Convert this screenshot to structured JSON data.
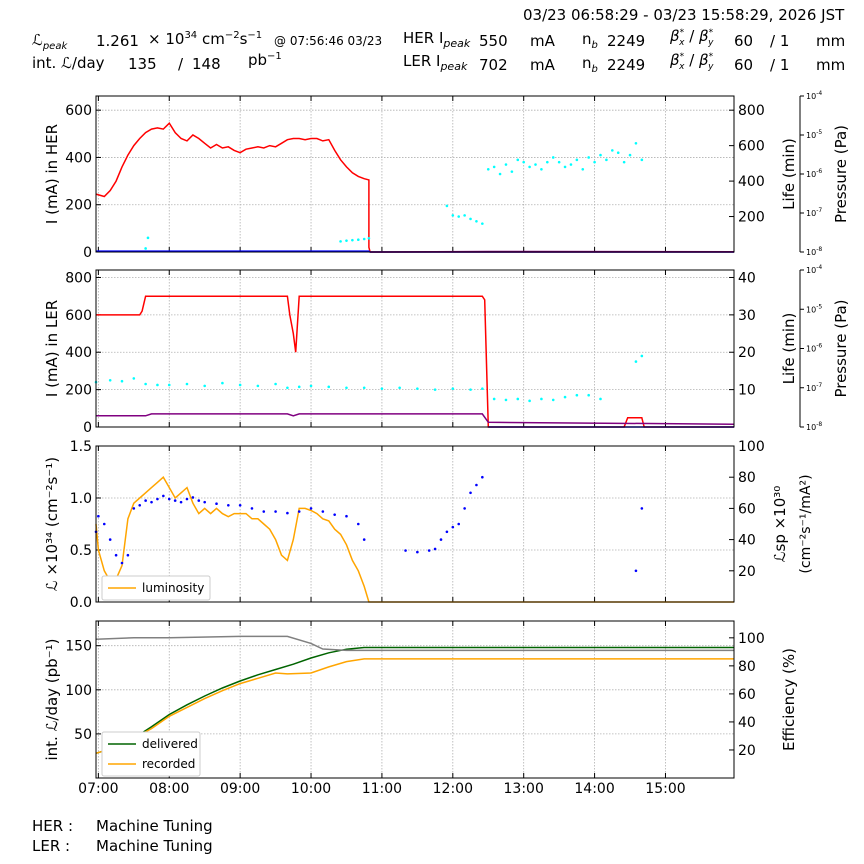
{
  "header": {
    "timerange": "03/23 06:58:29 - 03/23 15:58:29, 2026 JST",
    "lpeak_label": "ℒ",
    "lpeak_sub": "peak",
    "lpeak_value": "1.261",
    "lpeak_times": "× 10",
    "lpeak_exp": "34",
    "lpeak_unit": "cm",
    "lpeak_unit_exp1": "−2",
    "lpeak_unit_s": "s",
    "lpeak_unit_exp2": "−1",
    "lpeak_at": "@ 07:56:46 03/23",
    "intl_label": "int. ℒ/day",
    "intl_value": "135",
    "intl_slash": "/",
    "intl_total": "148",
    "intl_unit": "pb",
    "intl_unit_exp": "−1",
    "her_label": "HER I",
    "her_sub": "peak",
    "her_current": "550",
    "her_unit": "mA",
    "her_nb_label": "n",
    "her_nb_sub": "b",
    "her_nb": "2249",
    "her_beta": "β",
    "her_beta_sub": "x",
    "her_beta_sep": "/",
    "her_beta_sub2": "y",
    "her_betax": "60",
    "her_betay": "/ 1",
    "her_beta_unit": "mm",
    "ler_label": "LER I",
    "ler_sub": "peak",
    "ler_current": "702",
    "ler_unit": "mA",
    "ler_nb_label": "n",
    "ler_nb_sub": "b",
    "ler_nb": "2249",
    "ler_beta": "β",
    "ler_beta_sub": "x",
    "ler_beta_sep": "/",
    "ler_beta_sub2": "y",
    "ler_betax": "60",
    "ler_betay": "/ 1",
    "ler_beta_unit": "mm",
    "star": "*"
  },
  "footer": {
    "her_label": "HER :",
    "her_status": "Machine Tuning",
    "ler_label": "LER :",
    "ler_status": "Machine Tuning"
  },
  "colors": {
    "red": "#ff0000",
    "cyan": "#00ffff",
    "blue": "#0000ff",
    "orange": "#ffa500",
    "purple": "#800080",
    "green": "#006400",
    "gray": "#808080",
    "grid": "#b0b0b0"
  },
  "chart_data": [
    {
      "type": "line",
      "panel": "HER",
      "ylabel": "I (mA) in HER",
      "ylabel2": "Life (min)",
      "ylabel3": "Pressure (Pa)",
      "ylim": [
        0,
        660
      ],
      "ylim2": [
        0,
        880
      ],
      "ylim3": [
        1e-08,
        0.0001
      ],
      "xlim": [
        "06:58",
        "15:58"
      ],
      "yticks": [
        0,
        200,
        400,
        600
      ],
      "yticks2": [
        200,
        400,
        600,
        800
      ],
      "yticks3_exp": [
        "-4",
        "-5",
        "-6",
        "-7",
        "-8"
      ],
      "pressure_tick_base": "10",
      "series": [
        {
          "name": "",
          "color": "red",
          "x": [
            "06:58",
            "07:05",
            "07:10",
            "07:15",
            "07:20",
            "07:25",
            "07:30",
            "07:35",
            "07:40",
            "07:45",
            "07:50",
            "07:55",
            "08:00",
            "08:05",
            "08:10",
            "08:15",
            "08:20",
            "08:25",
            "08:30",
            "08:35",
            "08:40",
            "08:45",
            "08:50",
            "08:55",
            "09:00",
            "09:05",
            "09:10",
            "09:15",
            "09:20",
            "09:25",
            "09:30",
            "09:35",
            "09:40",
            "09:45",
            "09:50",
            "09:55",
            "10:00",
            "10:05",
            "10:10",
            "10:15",
            "10:20",
            "10:25",
            "10:30",
            "10:35",
            "10:40",
            "10:45",
            "10:49",
            "10:49",
            "10:50",
            "15:58"
          ],
          "values": [
            245,
            235,
            260,
            300,
            360,
            410,
            450,
            480,
            505,
            520,
            525,
            520,
            545,
            505,
            480,
            470,
            495,
            480,
            460,
            440,
            455,
            440,
            445,
            430,
            420,
            435,
            440,
            445,
            440,
            450,
            445,
            460,
            475,
            480,
            480,
            475,
            480,
            480,
            470,
            475,
            430,
            390,
            360,
            335,
            320,
            310,
            305,
            20,
            0,
            0
          ]
        },
        {
          "name": "",
          "color": "cyan",
          "style": "scatter",
          "x": [
            "07:40",
            "07:42",
            "10:25",
            "10:30",
            "10:35",
            "10:40",
            "10:45",
            "10:49",
            "11:55",
            "12:00",
            "12:05",
            "12:10",
            "12:15",
            "12:20",
            "12:25",
            "12:30",
            "12:35",
            "12:40",
            "12:45",
            "12:50",
            "12:55",
            "13:00",
            "13:05",
            "13:10",
            "13:15",
            "13:20",
            "13:25",
            "13:30",
            "13:35",
            "13:40",
            "13:45",
            "13:50",
            "13:55",
            "14:00",
            "14:05",
            "14:10",
            "14:15",
            "14:20",
            "14:25",
            "14:30",
            "14:35",
            "14:40"
          ],
          "values": [
            15,
            60,
            45,
            48,
            50,
            52,
            55,
            58,
            195,
            155,
            150,
            155,
            140,
            130,
            120,
            350,
            360,
            330,
            370,
            340,
            390,
            380,
            360,
            370,
            350,
            380,
            400,
            380,
            360,
            370,
            390,
            350,
            400,
            380,
            410,
            390,
            430,
            420,
            380,
            410,
            460,
            390
          ]
        },
        {
          "name": "",
          "color": "blue",
          "x": [
            "06:58",
            "10:49",
            "10:50",
            "15:58"
          ],
          "values": [
            4,
            4,
            0,
            0
          ]
        },
        {
          "name": "",
          "color": "purple",
          "x": [
            "10:50",
            "12:30",
            "13:00",
            "15:58"
          ],
          "values": [
            0,
            2,
            2,
            1
          ]
        }
      ]
    },
    {
      "type": "line",
      "panel": "LER",
      "ylabel": "I (mA) in LER",
      "ylabel2": "Life (min)",
      "ylabel3": "Pressure (Pa)",
      "ylim": [
        0,
        840
      ],
      "ylim2": [
        0,
        42
      ],
      "ylim3": [
        1e-08,
        0.0001
      ],
      "yticks": [
        0,
        200,
        400,
        600,
        800
      ],
      "yticks2": [
        10,
        20,
        30,
        40
      ],
      "yticks3_exp": [
        "-4",
        "-5",
        "-6",
        "-7",
        "-8"
      ],
      "pressure_tick_base": "10",
      "series": [
        {
          "name": "",
          "color": "red",
          "x": [
            "06:58",
            "07:35",
            "07:37",
            "07:40",
            "09:40",
            "09:42",
            "09:45",
            "09:47",
            "09:50",
            "09:52",
            "12:25",
            "12:27",
            "12:30",
            "14:25",
            "14:28",
            "14:40",
            "14:42",
            "15:58"
          ],
          "values": [
            600,
            600,
            620,
            700,
            700,
            600,
            500,
            400,
            700,
            700,
            700,
            680,
            0,
            0,
            50,
            50,
            0,
            0
          ]
        },
        {
          "name": "",
          "color": "cyan",
          "style": "scatter",
          "x": [
            "06:58",
            "07:10",
            "07:20",
            "07:30",
            "07:40",
            "07:50",
            "08:00",
            "08:15",
            "08:30",
            "08:45",
            "09:00",
            "09:15",
            "09:30",
            "09:40",
            "09:50",
            "10:00",
            "10:15",
            "10:30",
            "10:45",
            "11:00",
            "11:15",
            "11:30",
            "11:45",
            "12:00",
            "12:15",
            "12:25",
            "12:35",
            "12:45",
            "12:55",
            "13:05",
            "13:15",
            "13:25",
            "13:35",
            "13:45",
            "13:55",
            "14:05",
            "14:35",
            "14:40"
          ],
          "values": [
            240,
            250,
            245,
            260,
            230,
            225,
            225,
            230,
            220,
            235,
            225,
            220,
            230,
            210,
            215,
            220,
            215,
            210,
            210,
            205,
            210,
            205,
            200,
            205,
            200,
            205,
            150,
            145,
            150,
            140,
            150,
            145,
            160,
            170,
            170,
            150,
            350,
            380
          ]
        },
        {
          "name": "",
          "color": "purple",
          "x": [
            "06:58",
            "07:40",
            "07:45",
            "09:40",
            "09:45",
            "09:50",
            "12:25",
            "12:30",
            "15:58"
          ],
          "values": [
            60,
            60,
            70,
            70,
            60,
            70,
            70,
            25,
            15
          ]
        },
        {
          "name": "",
          "color": "blue",
          "x": [
            "12:30",
            "15:58"
          ],
          "values": [
            0,
            0
          ]
        }
      ]
    },
    {
      "type": "line",
      "panel": "Luminosity",
      "ylabel": "ℒ ×10³⁴ (cm⁻²s⁻¹)",
      "ylabel2": "ℒsp ×10³⁰ (cm⁻²s⁻¹/mA²)",
      "ylim": [
        0,
        1.5
      ],
      "ylim2": [
        0,
        100
      ],
      "yticks": [
        0.0,
        0.5,
        1.0,
        1.5
      ],
      "ytick_labels": [
        "0.0",
        "0.5",
        "1.0",
        "1.5"
      ],
      "yticks2": [
        20,
        40,
        60,
        80,
        100
      ],
      "legend": [
        "luminosity"
      ],
      "legend_loc": "lower left",
      "series": [
        {
          "name": "luminosity",
          "color": "orange",
          "x": [
            "06:58",
            "07:00",
            "07:05",
            "07:10",
            "07:15",
            "07:20",
            "07:25",
            "07:30",
            "07:35",
            "07:40",
            "07:45",
            "07:50",
            "07:55",
            "08:00",
            "08:05",
            "08:10",
            "08:15",
            "08:20",
            "08:25",
            "08:30",
            "08:35",
            "08:40",
            "08:45",
            "08:50",
            "08:55",
            "09:00",
            "09:05",
            "09:10",
            "09:15",
            "09:20",
            "09:25",
            "09:30",
            "09:35",
            "09:40",
            "09:45",
            "09:50",
            "09:55",
            "10:00",
            "10:05",
            "10:10",
            "10:15",
            "10:20",
            "10:25",
            "10:30",
            "10:35",
            "10:40",
            "10:45",
            "10:49",
            "10:50",
            "15:58"
          ],
          "values": [
            0.75,
            0.5,
            0.3,
            0.2,
            0.22,
            0.35,
            0.8,
            0.95,
            1.0,
            1.05,
            1.1,
            1.15,
            1.2,
            1.1,
            1.0,
            1.05,
            1.1,
            0.95,
            0.85,
            0.9,
            0.85,
            0.9,
            0.85,
            0.82,
            0.85,
            0.85,
            0.85,
            0.8,
            0.8,
            0.75,
            0.7,
            0.6,
            0.45,
            0.4,
            0.6,
            0.9,
            0.9,
            0.88,
            0.85,
            0.8,
            0.78,
            0.7,
            0.65,
            0.55,
            0.4,
            0.3,
            0.15,
            0.0,
            0.0,
            0.0
          ]
        },
        {
          "name": "",
          "color": "blue",
          "style": "scatter",
          "x": [
            "06:58",
            "07:00",
            "07:05",
            "07:10",
            "07:15",
            "07:20",
            "07:25",
            "07:30",
            "07:35",
            "07:40",
            "07:45",
            "07:50",
            "07:55",
            "08:00",
            "08:05",
            "08:10",
            "08:15",
            "08:20",
            "08:25",
            "08:30",
            "08:40",
            "08:50",
            "09:00",
            "09:10",
            "09:20",
            "09:30",
            "09:40",
            "09:50",
            "10:00",
            "10:10",
            "10:20",
            "10:30",
            "10:40",
            "10:45",
            "11:20",
            "11:30",
            "11:40",
            "11:45",
            "11:50",
            "11:55",
            "12:00",
            "12:05",
            "12:10",
            "12:15",
            "12:20",
            "12:25",
            "14:35",
            "14:40"
          ],
          "values": [
            45,
            55,
            50,
            40,
            30,
            25,
            30,
            60,
            62,
            65,
            64,
            66,
            68,
            66,
            65,
            64,
            66,
            67,
            65,
            64,
            63,
            62,
            62,
            60,
            58,
            58,
            57,
            58,
            60,
            58,
            56,
            55,
            50,
            40,
            33,
            32,
            33,
            34,
            40,
            45,
            48,
            50,
            60,
            70,
            75,
            80,
            20,
            60
          ]
        }
      ]
    },
    {
      "type": "line",
      "panel": "Integrated",
      "ylabel": "int. ℒ/day (pb⁻¹)",
      "ylabel2": "Efficiency (%)",
      "ylim": [
        0,
        178
      ],
      "ylim2": [
        0,
        112
      ],
      "yticks": [
        50,
        100,
        150
      ],
      "yticks2": [
        20,
        40,
        60,
        80,
        100
      ],
      "xticks": [
        "07:00",
        "08:00",
        "09:00",
        "10:00",
        "11:00",
        "12:00",
        "13:00",
        "14:00",
        "15:00"
      ],
      "legend": [
        "delivered",
        "recorded"
      ],
      "legend_loc": "lower left",
      "series": [
        {
          "name": "delivered",
          "color": "green",
          "x": [
            "06:58",
            "07:15",
            "07:30",
            "07:45",
            "08:00",
            "08:15",
            "08:30",
            "08:45",
            "09:00",
            "09:15",
            "09:30",
            "09:45",
            "10:00",
            "10:15",
            "10:30",
            "10:45",
            "10:50",
            "15:58"
          ],
          "values": [
            28,
            35,
            45,
            58,
            72,
            83,
            93,
            102,
            110,
            117,
            123,
            129,
            136,
            142,
            146,
            148,
            148,
            148
          ]
        },
        {
          "name": "recorded",
          "color": "orange",
          "x": [
            "06:58",
            "07:15",
            "07:30",
            "07:45",
            "08:00",
            "08:15",
            "08:30",
            "08:45",
            "09:00",
            "09:15",
            "09:30",
            "09:40",
            "10:00",
            "10:15",
            "10:30",
            "10:45",
            "10:50",
            "15:58"
          ],
          "values": [
            28,
            35,
            45,
            56,
            70,
            80,
            90,
            99,
            107,
            113,
            119,
            118,
            119,
            126,
            132,
            135,
            135,
            135
          ]
        },
        {
          "name": "",
          "color": "gray",
          "axis": "right",
          "x": [
            "06:58",
            "07:30",
            "08:00",
            "09:00",
            "09:40",
            "10:00",
            "10:10",
            "10:30",
            "10:50",
            "15:58"
          ],
          "values": [
            99,
            100,
            100,
            101,
            101,
            96,
            92,
            91,
            91,
            91
          ]
        }
      ]
    }
  ]
}
